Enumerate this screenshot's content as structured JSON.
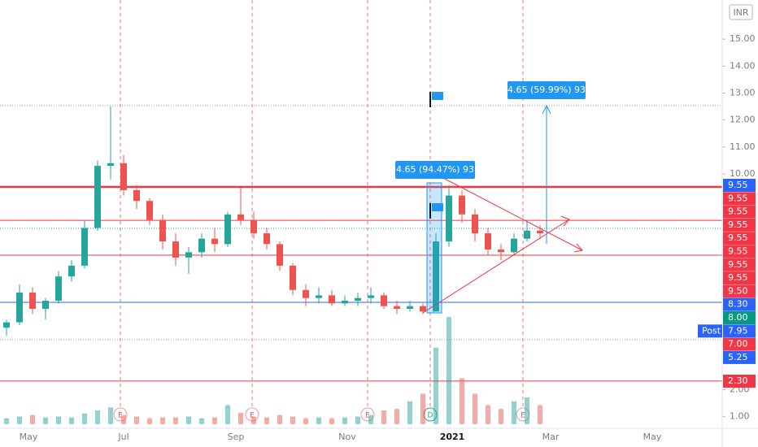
{
  "chart_data": {
    "type": "candlestick",
    "currency": "INR",
    "ylim": [
      0.48,
      16.45
    ],
    "yticks": [
      {
        "value": 1,
        "label": "1.00"
      },
      {
        "value": 2,
        "label": "2.00"
      },
      {
        "value": 10,
        "label": "10.00"
      },
      {
        "value": 11,
        "label": "11.00"
      },
      {
        "value": 12,
        "label": "12.00"
      },
      {
        "value": 13,
        "label": "13.00"
      },
      {
        "value": 14,
        "label": "14.00"
      },
      {
        "value": 15,
        "label": "15.00"
      }
    ],
    "x_labels": [
      "May",
      "Jul",
      "Sep",
      "Nov",
      "2021",
      "Mar",
      "May"
    ],
    "up_color": "#26a69a",
    "down_color": "#ef5350",
    "candles": [
      [
        4.3,
        4.6,
        4.0,
        4.5
      ],
      [
        4.5,
        5.9,
        4.4,
        5.6
      ],
      [
        5.6,
        5.8,
        4.8,
        5.0
      ],
      [
        5.0,
        5.4,
        4.6,
        5.3
      ],
      [
        5.3,
        6.4,
        5.2,
        6.2
      ],
      [
        6.2,
        6.8,
        6.0,
        6.6
      ],
      [
        6.6,
        8.3,
        6.5,
        8.0
      ],
      [
        8.0,
        10.5,
        7.9,
        10.3
      ],
      [
        10.3,
        12.5,
        9.8,
        10.4
      ],
      [
        10.4,
        10.7,
        9.2,
        9.4
      ],
      [
        9.4,
        9.6,
        8.7,
        9.0
      ],
      [
        9.0,
        9.1,
        8.1,
        8.3
      ],
      [
        8.3,
        8.5,
        7.2,
        7.5
      ],
      [
        7.5,
        7.8,
        6.6,
        6.9
      ],
      [
        6.9,
        7.3,
        6.3,
        7.1
      ],
      [
        7.1,
        7.8,
        6.9,
        7.6
      ],
      [
        7.6,
        8.0,
        7.1,
        7.4
      ],
      [
        7.4,
        8.6,
        7.3,
        8.5
      ],
      [
        8.5,
        9.5,
        8.1,
        8.3
      ],
      [
        8.3,
        8.6,
        7.6,
        7.8
      ],
      [
        7.8,
        8.0,
        7.2,
        7.4
      ],
      [
        7.4,
        7.5,
        6.4,
        6.6
      ],
      [
        6.6,
        6.7,
        5.5,
        5.7
      ],
      [
        5.7,
        5.9,
        5.1,
        5.4
      ],
      [
        5.4,
        5.8,
        5.2,
        5.5
      ],
      [
        5.5,
        5.7,
        5.1,
        5.2
      ],
      [
        5.2,
        5.5,
        5.1,
        5.3
      ],
      [
        5.3,
        5.6,
        5.1,
        5.4
      ],
      [
        5.4,
        5.8,
        5.2,
        5.5
      ],
      [
        5.5,
        5.6,
        5.0,
        5.1
      ],
      [
        5.1,
        5.3,
        4.8,
        5.0
      ],
      [
        5.0,
        5.3,
        4.9,
        5.1
      ],
      [
        5.1,
        5.2,
        4.8,
        4.9
      ],
      [
        4.9,
        7.8,
        4.9,
        7.5
      ],
      [
        7.5,
        9.6,
        7.3,
        9.2
      ],
      [
        9.2,
        9.4,
        8.2,
        8.5
      ],
      [
        8.5,
        8.7,
        7.5,
        7.8
      ],
      [
        7.8,
        8.0,
        7.0,
        7.2
      ],
      [
        7.2,
        7.4,
        6.8,
        7.1
      ],
      [
        7.1,
        7.8,
        7.0,
        7.6
      ],
      [
        7.6,
        8.3,
        7.5,
        7.9
      ],
      [
        7.9,
        8.1,
        7.6,
        7.8
      ]
    ],
    "volume": [
      8,
      10,
      12,
      9,
      10,
      9,
      14,
      18,
      22,
      12,
      10,
      8,
      9,
      9,
      10,
      8,
      9,
      25,
      15,
      10,
      9,
      12,
      10,
      8,
      9,
      8,
      9,
      10,
      12,
      18,
      20,
      30,
      40,
      100,
      140,
      60,
      40,
      25,
      20,
      30,
      35,
      25
    ],
    "volume_lim": [
      0,
      140
    ],
    "levels": [
      {
        "value": 9.52,
        "color": "#f23645"
      },
      {
        "value": 8.28,
        "color": "#f23645"
      },
      {
        "value": 6.99,
        "color": "#f23645"
      },
      {
        "value": 2.32,
        "color": "#f23645"
      },
      {
        "value": 5.24,
        "color": "#2962ff"
      }
    ],
    "price_labels": [
      {
        "label": "9.55",
        "color": "#2962ff"
      },
      {
        "label": "9.55",
        "color": "#f23645"
      },
      {
        "label": "9.55",
        "color": "#f23645"
      },
      {
        "label": "9.55",
        "color": "#f23645"
      },
      {
        "label": "9.55",
        "color": "#f23645"
      },
      {
        "label": "9.55",
        "color": "#f23645"
      },
      {
        "label": "9.55",
        "color": "#f23645"
      },
      {
        "label": "9.55",
        "color": "#f23645"
      },
      {
        "label": "9.50",
        "color": "#f23645"
      },
      {
        "label": "8.30",
        "color": "#2962ff"
      },
      {
        "label": "8.00",
        "color": "#089981"
      },
      {
        "label": "7.95",
        "color": "#2962ff"
      },
      {
        "label": "7.00",
        "color": "#f23645"
      },
      {
        "label": "5.25",
        "color": "#2962ff"
      },
      {
        "label": "2.30",
        "color": "#f23645"
      }
    ],
    "post_label": "Post",
    "events": [
      "E",
      "E",
      "E",
      "D",
      "E"
    ],
    "annotations": [
      "4.65 (94.47%) 93",
      "4.65 (59.99%) 93"
    ]
  }
}
